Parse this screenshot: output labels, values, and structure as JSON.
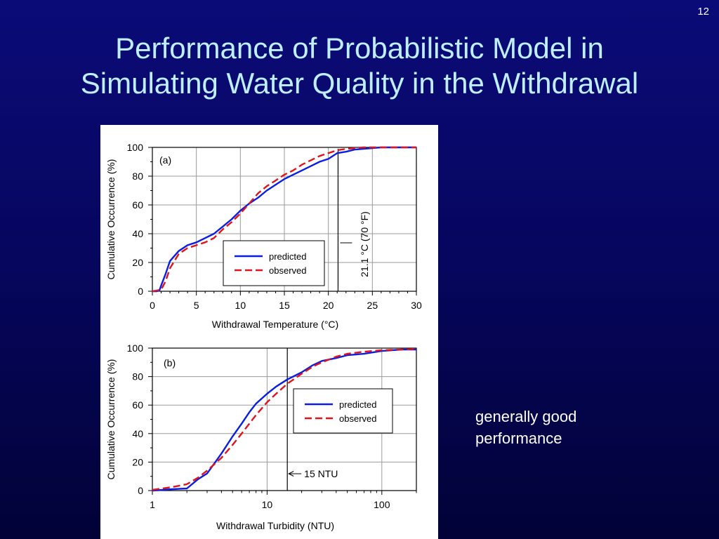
{
  "slide": {
    "number": "12",
    "title_lines": [
      "Performance of Probabilistic Model in",
      "Simulating Water Quality in the Withdrawal"
    ],
    "caption_lines": [
      "generally good",
      "performance"
    ]
  },
  "colors": {
    "background": "#06065f",
    "title": "#bfefff",
    "predicted": "#0a1ee0",
    "observed": "#e0141e"
  },
  "chart_data": [
    {
      "type": "line",
      "panel_label": "(a)",
      "xlabel": "Withdrawal Temperature (°C)",
      "ylabel": "Cumulative Occurrence (%)",
      "xscale": "linear",
      "xlim": [
        0,
        30
      ],
      "ylim": [
        0,
        100
      ],
      "x_ticks": [
        0,
        5,
        10,
        15,
        20,
        25,
        30
      ],
      "x_tick_labels": [
        "0",
        "5",
        "10",
        "15",
        "20",
        "25",
        "30"
      ],
      "y_ticks": [
        0,
        20,
        40,
        60,
        80,
        100
      ],
      "y_tick_labels": [
        "0",
        "20",
        "40",
        "60",
        "80",
        "100"
      ],
      "grid": true,
      "legend": {
        "position": "center-right",
        "entries": [
          "predicted",
          "observed"
        ]
      },
      "reference_line": {
        "x": 21.1,
        "label": "21.1 °C (70 °F)"
      },
      "series": [
        {
          "name": "predicted",
          "style": "solid",
          "x": [
            0,
            0.5,
            0.8,
            1.0,
            1.5,
            2.0,
            3.0,
            4.0,
            5.0,
            6.0,
            7.0,
            8.0,
            9.0,
            10.0,
            11.0,
            12.0,
            13.0,
            14.0,
            15.0,
            16.0,
            17.0,
            18.0,
            19.0,
            20.0,
            21.0,
            22.0,
            23.0,
            24.0,
            25.0,
            26.0,
            27.0,
            28.0,
            29.0,
            30.0
          ],
          "y": [
            0,
            0,
            0.5,
            4,
            12,
            21,
            28,
            32,
            34,
            37,
            40,
            45,
            50,
            56,
            61,
            65,
            70,
            74,
            78,
            81,
            84,
            87,
            90,
            92,
            96,
            97,
            98.5,
            99,
            99.5,
            100,
            100,
            100,
            100,
            100
          ]
        },
        {
          "name": "observed",
          "style": "dashed",
          "x": [
            0,
            1.0,
            1.5,
            2.0,
            3.0,
            4.0,
            5.0,
            6.0,
            7.0,
            8.0,
            9.0,
            10.0,
            11.0,
            12.0,
            13.0,
            14.0,
            15.0,
            16.0,
            17.0,
            18.0,
            19.0,
            20.0,
            21.0,
            22.0,
            23.0,
            24.0,
            25.0,
            26.0,
            27.0,
            28.0,
            29.0,
            30.0
          ],
          "y": [
            0,
            1,
            7,
            16,
            26,
            30,
            32,
            34,
            37,
            43,
            48,
            54,
            61,
            68,
            73,
            77,
            81,
            84,
            88,
            91,
            94,
            96,
            98,
            99,
            99.5,
            100,
            100,
            100,
            100,
            100,
            100,
            100
          ]
        }
      ]
    },
    {
      "type": "line",
      "panel_label": "(b)",
      "xlabel": "Withdrawal Turbidity (NTU)",
      "ylabel": "Cumulative Occurrence (%)",
      "xscale": "log",
      "xlim": [
        1,
        200
      ],
      "ylim": [
        0,
        100
      ],
      "x_ticks": [
        1,
        10,
        100
      ],
      "x_tick_labels": [
        "1",
        "10",
        "100"
      ],
      "y_ticks": [
        0,
        20,
        40,
        60,
        80,
        100
      ],
      "y_tick_labels": [
        "0",
        "20",
        "40",
        "60",
        "80",
        "100"
      ],
      "grid": true,
      "legend": {
        "position": "center-right",
        "entries": [
          "predicted",
          "observed"
        ]
      },
      "reference_line": {
        "x": 15,
        "label": "15 NTU"
      },
      "series": [
        {
          "name": "predicted",
          "style": "solid",
          "x": [
            1,
            1.5,
            2.0,
            2.5,
            3.0,
            4.0,
            5.0,
            6.0,
            7.0,
            8.0,
            10,
            12,
            15,
            20,
            25,
            30,
            40,
            50,
            70,
            100,
            150,
            200
          ],
          "y": [
            0,
            1,
            1.5,
            8,
            12,
            26,
            38,
            47,
            55,
            61,
            68,
            73,
            78,
            83,
            88,
            91,
            93,
            95,
            96,
            98,
            99,
            99
          ]
        },
        {
          "name": "observed",
          "style": "dashed",
          "x": [
            1,
            1.5,
            2.0,
            2.5,
            3.0,
            4.0,
            5.0,
            6.0,
            7.0,
            8.0,
            10,
            12,
            15,
            20,
            25,
            30,
            40,
            50,
            70,
            100,
            150,
            200
          ],
          "y": [
            0.5,
            2.5,
            4.5,
            9,
            14,
            23,
            32,
            40,
            47,
            53,
            62,
            68,
            75,
            82,
            87,
            90,
            94,
            96,
            97.5,
            98.5,
            99,
            99.5
          ]
        }
      ]
    }
  ]
}
